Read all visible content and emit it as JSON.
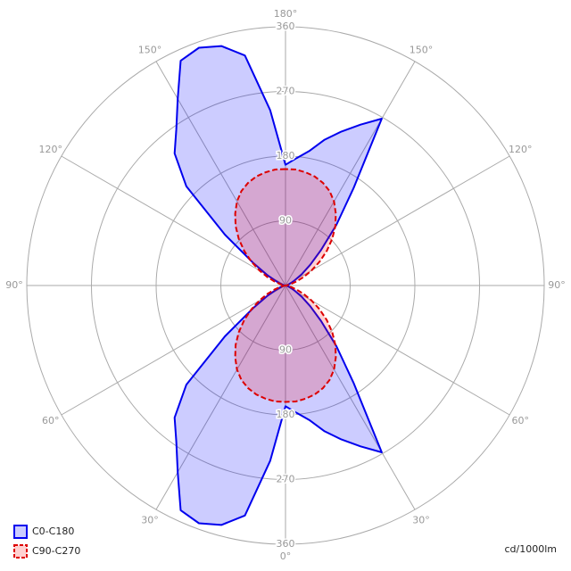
{
  "chart_data": {
    "type": "polar",
    "x": [
      -180,
      -175,
      -170,
      -165,
      -160,
      -155,
      -150,
      -145,
      -140,
      -135,
      -130,
      -125,
      -120,
      -115,
      -110,
      -105,
      -100,
      -95,
      -90,
      -85,
      -80,
      -75,
      -70,
      -65,
      -60,
      -55,
      -50,
      -45,
      -40,
      -35,
      -30,
      -25,
      -20,
      -15,
      -10,
      -5,
      0,
      5,
      10,
      15,
      20,
      25,
      30,
      35,
      40,
      45,
      50,
      55,
      60,
      65,
      70,
      75,
      80,
      85,
      90,
      95,
      100,
      105,
      110,
      115,
      120,
      125,
      130,
      135,
      140,
      145,
      150,
      155,
      160,
      165,
      170,
      175,
      180
    ],
    "series": [
      {
        "name": "C0-C180",
        "color": "#0000ee",
        "fill": "rgba(0,0,255,0.2)",
        "dashed": false,
        "values": [
          168,
          245,
          325,
          345,
          352,
          345,
          300,
          265,
          240,
          195,
          110,
          55,
          30,
          15,
          8,
          4,
          2,
          0,
          0,
          0,
          2,
          4,
          8,
          15,
          30,
          55,
          110,
          195,
          240,
          265,
          300,
          345,
          352,
          345,
          325,
          245,
          168,
          178,
          190,
          210,
          228,
          247,
          268,
          165,
          110,
          70,
          45,
          28,
          15,
          9,
          5,
          3,
          1,
          0,
          0,
          0,
          1,
          3,
          5,
          9,
          15,
          28,
          45,
          70,
          110,
          165,
          268,
          247,
          228,
          210,
          190,
          178,
          168
        ]
      },
      {
        "name": "C90-C270",
        "color": "#dd0000",
        "fill": "rgba(255,0,0,0.18)",
        "dashed": true,
        "values": [
          162,
          162,
          160,
          157,
          152,
          145,
          135,
          122,
          108,
          92,
          75,
          58,
          42,
          28,
          16,
          8,
          3,
          1,
          0,
          1,
          3,
          8,
          16,
          28,
          42,
          58,
          75,
          92,
          108,
          122,
          135,
          145,
          152,
          157,
          160,
          162,
          162,
          162,
          160,
          157,
          152,
          145,
          135,
          122,
          108,
          92,
          75,
          58,
          42,
          28,
          16,
          8,
          3,
          1,
          0,
          1,
          3,
          8,
          16,
          28,
          42,
          58,
          75,
          92,
          108,
          122,
          135,
          145,
          152,
          157,
          160,
          162,
          162
        ]
      }
    ],
    "rlim": [
      0,
      360
    ],
    "rticks": [
      90,
      180,
      270,
      360
    ],
    "angle_ticks": [
      {
        "value": 180,
        "label": "180°"
      },
      {
        "value": -150,
        "label": "150°"
      },
      {
        "value": 150,
        "label": "150°"
      },
      {
        "value": -120,
        "label": "120°"
      },
      {
        "value": 120,
        "label": "120°"
      },
      {
        "value": -90,
        "label": "90°"
      },
      {
        "value": 90,
        "label": "90°"
      },
      {
        "value": -60,
        "label": "60°"
      },
      {
        "value": 60,
        "label": "60°"
      },
      {
        "value": -30,
        "label": "30°"
      },
      {
        "value": 30,
        "label": "30°"
      },
      {
        "value": 0,
        "label": "0°"
      }
    ],
    "unit_label": "cd/1000lm",
    "grid": true
  }
}
